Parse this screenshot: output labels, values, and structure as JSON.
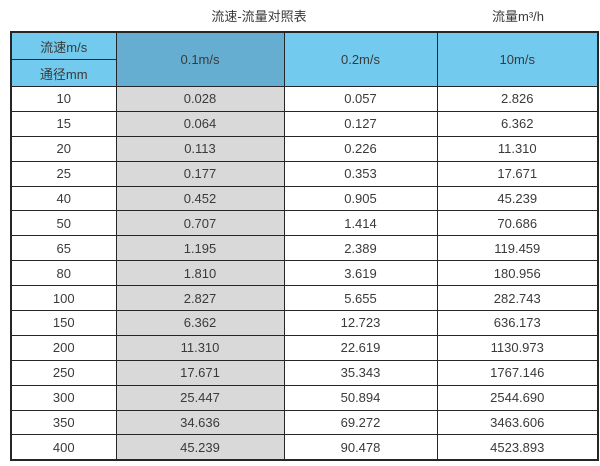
{
  "page": {
    "title": "流速-流量对照表",
    "flow_unit_label": "流量m³/h"
  },
  "chart_data": {
    "type": "table",
    "title": "流速-流量对照表",
    "flow_unit": "流量m³/h",
    "corner_top": "流速m/s",
    "corner_bottom": "通径mm",
    "velocity_columns": [
      "0.1m/s",
      "0.2m/s",
      "10m/s"
    ],
    "categories": [
      "10",
      "15",
      "20",
      "25",
      "40",
      "50",
      "65",
      "80",
      "100",
      "150",
      "200",
      "250",
      "300",
      "350",
      "400"
    ],
    "series": [
      {
        "name": "0.1m/s",
        "values": [
          "0.028",
          "0.064",
          "0.113",
          "0.177",
          "0.452",
          "0.707",
          "1.195",
          "1.810",
          "2.827",
          "6.362",
          "11.310",
          "17.671",
          "25.447",
          "34.636",
          "45.239"
        ]
      },
      {
        "name": "0.2m/s",
        "values": [
          "0.057",
          "0.127",
          "0.226",
          "0.353",
          "0.905",
          "1.414",
          "2.389",
          "3.619",
          "5.655",
          "12.723",
          "22.619",
          "35.343",
          "50.894",
          "69.272",
          "90.478"
        ]
      },
      {
        "name": "10m/s",
        "values": [
          "2.826",
          "6.362",
          "11.310",
          "17.671",
          "45.239",
          "70.686",
          "119.459",
          "180.956",
          "282.743",
          "636.173",
          "1130.973",
          "1767.146",
          "2544.690",
          "3463.606",
          "4523.893"
        ]
      }
    ]
  },
  "colors": {
    "header_blue": "#72CAEE",
    "header_blue_dark": "#65AED1",
    "column_gray": "#D9D9D9",
    "border": "#262626",
    "text": "#3A3A3A"
  }
}
